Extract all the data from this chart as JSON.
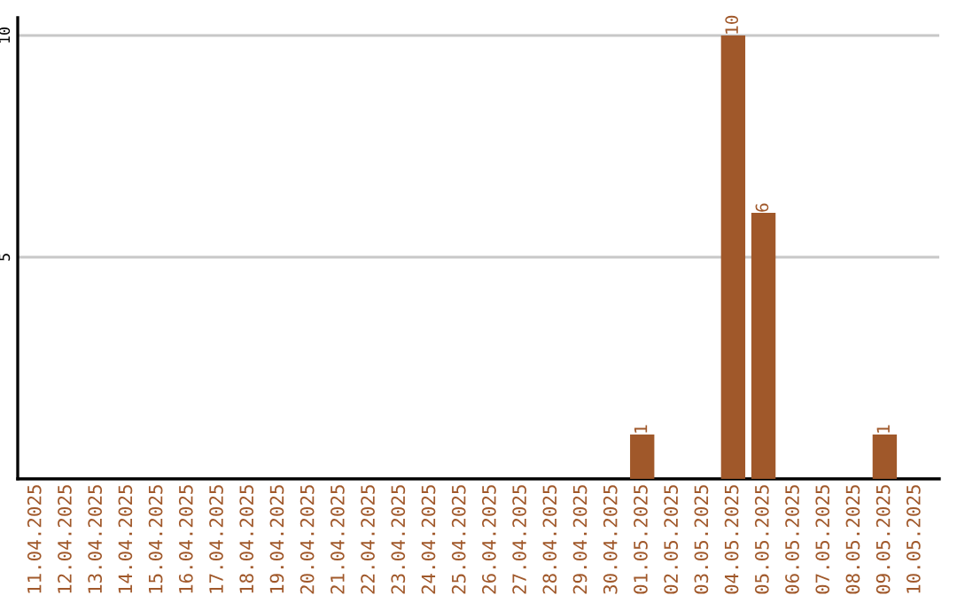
{
  "chart_data": {
    "type": "bar",
    "categories": [
      "11.04.2025",
      "12.04.2025",
      "13.04.2025",
      "14.04.2025",
      "15.04.2025",
      "16.04.2025",
      "17.04.2025",
      "18.04.2025",
      "19.04.2025",
      "20.04.2025",
      "21.04.2025",
      "22.04.2025",
      "23.04.2025",
      "24.04.2025",
      "25.04.2025",
      "26.04.2025",
      "27.04.2025",
      "28.04.2025",
      "29.04.2025",
      "30.04.2025",
      "01.05.2025",
      "02.05.2025",
      "03.05.2025",
      "04.05.2025",
      "05.05.2025",
      "06.05.2025",
      "07.05.2025",
      "08.05.2025",
      "09.05.2025",
      "10.05.2025"
    ],
    "values": [
      0,
      0,
      0,
      0,
      0,
      0,
      0,
      0,
      0,
      0,
      0,
      0,
      0,
      0,
      0,
      0,
      0,
      0,
      0,
      0,
      1,
      0,
      0,
      10,
      6,
      0,
      0,
      0,
      1,
      0
    ],
    "value_labels": [
      null,
      null,
      null,
      null,
      null,
      null,
      null,
      null,
      null,
      null,
      null,
      null,
      null,
      null,
      null,
      null,
      null,
      null,
      null,
      null,
      "1",
      null,
      null,
      "10",
      "6",
      null,
      null,
      null,
      "1",
      null
    ],
    "color": "#a0582a",
    "ylim": [
      0,
      10.4
    ],
    "yticks": [
      5,
      10
    ],
    "grid": "y"
  }
}
